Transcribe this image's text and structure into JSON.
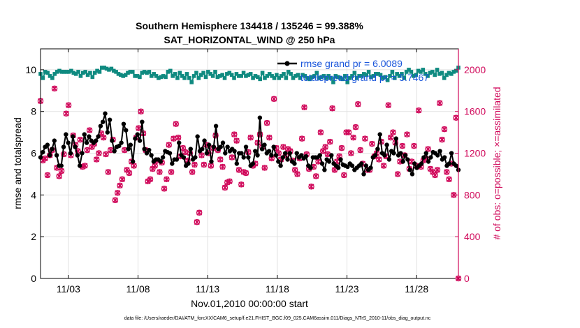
{
  "chart_data": {
    "type": "line",
    "title": "Southern Hemisphere 134418 / 135246 = 99.388%",
    "subtitle": "SAT_HORIZONTAL_WIND @ 250 hPa",
    "xlabel": "Nov.01,2010 00:00:00 start",
    "ylabel_left": "rmse and totalspread",
    "ylabel_right": "# of obs: o=possible; ×=assimilated",
    "footer": "data file: /Users/raeder/DAI/ATM_forcXX/CAM6_setup/f.e21.FHIST_BGC.f09_025.CAM6assim.011/Diags_NTrS_2010-11/obs_diag_output.nc",
    "x_tick_labels": [
      "11/03",
      "11/08",
      "11/13",
      "11/18",
      "11/23",
      "11/28"
    ],
    "x_tick_days": [
      3,
      8,
      13,
      18,
      23,
      28
    ],
    "xlim": [
      1.0,
      31.0
    ],
    "ylim_left": [
      0,
      11
    ],
    "ylim_right": [
      0,
      2200
    ],
    "y_ticks_left": [
      "0",
      "2",
      "4",
      "6",
      "8",
      "10"
    ],
    "y_ticks_right": [
      "0",
      "400",
      "800",
      "1200",
      "1600",
      "2000"
    ],
    "colors": {
      "rmse": "#000000",
      "spread": "#0f8a80",
      "obs": "#d0085a",
      "legend_text": "#1a56db",
      "grid": "#e2e2e2"
    },
    "legend": [
      {
        "name": "rmse grand pr = 6.0089"
      },
      {
        "name": "totalspread grand pr = 5.7467"
      }
    ],
    "series": [
      {
        "name": "rmse",
        "axis": "left",
        "values": [
          5.8,
          6.05,
          6.3,
          6.4,
          5.9,
          6.2,
          6.6,
          5.9,
          5.4,
          5.4,
          6.3,
          6.9,
          6.5,
          6.0,
          6.8,
          6.3,
          5.9,
          5.4,
          6.0,
          6.9,
          6.5,
          6.8,
          6.6,
          6.5,
          6.6,
          6.8,
          7.3,
          7.5,
          7.9,
          7.0,
          7.6,
          6.6,
          6.1,
          6.3,
          6.35,
          6.5,
          7.4,
          7.1,
          6.2,
          6.4,
          5.6,
          6.7,
          6.9,
          6.6,
          7.5,
          6.2,
          6.0,
          6.15,
          5.9,
          5.6,
          5.7,
          5.7,
          5.6,
          5.8,
          6.1,
          6.05,
          6.0,
          5.5,
          5.7,
          5.7,
          6.5,
          5.9,
          5.8,
          5.4,
          5.5,
          6.2,
          5.7,
          5.8,
          6.8,
          6.1,
          6.2,
          6.6,
          6.0,
          6.4,
          5.6,
          6.3,
          7.3,
          6.2,
          6.3,
          6.5,
          6.0,
          6.3,
          6.1,
          6.2,
          6.1,
          5.5,
          6.0,
          6.0,
          5.8,
          6.3,
          5.8,
          5.4,
          5.5,
          6.1,
          5.9,
          7.7,
          6.2,
          6.4,
          6.0,
          6.1,
          5.9,
          6.3,
          5.9,
          5.6,
          5.4,
          5.8,
          6.0,
          5.7,
          6.0,
          5.6,
          5.5,
          6.0,
          5.8,
          5.9,
          5.75,
          5.85,
          5.4,
          5.3,
          5.8,
          5.8,
          5.8,
          5.9,
          5.5,
          5.2,
          5.7,
          5.6,
          5.9,
          5.5,
          5.4,
          5.3,
          5.7,
          5.45,
          5.4,
          5.35,
          5.5,
          5.4,
          5.2,
          5.3,
          5.4,
          5.5,
          5.0,
          5.4,
          5.2,
          5.3,
          5.8,
          5.9,
          6.2,
          6.9,
          6.0,
          5.9,
          6.4,
          5.7,
          6.1,
          6.0,
          6.7,
          5.9,
          6.0,
          5.6,
          5.9,
          5.7,
          5.2,
          5.0,
          5.5,
          5.3,
          5.4,
          5.5,
          5.8,
          6.0,
          5.6,
          5.8,
          6.05,
          6.0,
          5.9,
          6.1,
          5.7,
          5.8,
          5.4,
          5.5,
          6.0,
          5.5,
          5.4,
          5.2
        ]
      },
      {
        "name": "totalspread",
        "axis": "left",
        "values": [
          9.8,
          9.6,
          9.9,
          9.85,
          9.7,
          9.6,
          9.8,
          9.9,
          9.95,
          9.9,
          9.9,
          9.9,
          9.9,
          9.95,
          9.85,
          9.8,
          9.9,
          9.7,
          9.85,
          9.9,
          9.75,
          9.85,
          9.65,
          9.85,
          9.95,
          9.9,
          10.1,
          10.1,
          10.05,
          10.0,
          10.05,
          9.95,
          9.9,
          9.8,
          9.75,
          9.7,
          9.75,
          9.85,
          9.9,
          9.9,
          9.7,
          9.7,
          9.65,
          9.85,
          9.9,
          9.85,
          9.9,
          9.7,
          9.8,
          9.7,
          9.6,
          9.65,
          9.7,
          9.65,
          9.9,
          9.95,
          9.7,
          9.8,
          9.6,
          9.85,
          9.7,
          9.6,
          9.8,
          9.6,
          9.4,
          9.7,
          9.85,
          9.6,
          9.75,
          9.85,
          9.65,
          9.9,
          9.8,
          9.7,
          9.9,
          9.65,
          9.7,
          9.75,
          9.6,
          9.8,
          9.85,
          9.75,
          9.6,
          9.8,
          9.7,
          9.7,
          9.85,
          9.7,
          9.75,
          9.8,
          9.6,
          9.7,
          9.65,
          9.55,
          9.85,
          9.6,
          9.7,
          9.8,
          9.7,
          9.6,
          9.75,
          9.6,
          9.7,
          9.8,
          9.6,
          9.9,
          9.8,
          9.6,
          9.7,
          9.75,
          9.6,
          9.75,
          9.7,
          9.6,
          9.55,
          9.65,
          9.7,
          9.85,
          9.6,
          9.65,
          9.7,
          9.6,
          9.7,
          9.6,
          9.4,
          9.7,
          9.65,
          9.6,
          9.55,
          9.7,
          9.4,
          9.6,
          9.7,
          9.85,
          9.6,
          9.7,
          9.7,
          9.8,
          9.75,
          9.9,
          9.65,
          9.7,
          9.8,
          9.8,
          9.75,
          9.6,
          9.65,
          9.5,
          9.7,
          9.9,
          9.6,
          9.8,
          9.7,
          9.8,
          9.6,
          9.9,
          10.0,
          9.9,
          9.7,
          9.75,
          9.95,
          9.9,
          10.0,
          9.8,
          9.7,
          9.85,
          9.9,
          9.75,
          10.0,
          9.8,
          9.85,
          9.6,
          9.75,
          9.85,
          9.8,
          9.9,
          9.95,
          10.1
        ]
      },
      {
        "name": "obs_count",
        "axis": "right",
        "values": [
          1700,
          1130,
          1150,
          990,
          1180,
          1230,
          1820,
          1060,
          980,
          1030,
          1190,
          1580,
          1660,
          1180,
          1370,
          1280,
          1220,
          1330,
          1070,
          1080,
          1230,
          1420,
          1260,
          1290,
          1140,
          1200,
          1390,
          1350,
          1190,
          1020,
          1230,
          1330,
          750,
          820,
          890,
          950,
          1230,
          1040,
          1010,
          1120,
          1080,
          1350,
          1440,
          1600,
          1390,
          1230,
          930,
          950,
          1050,
          1080,
          1130,
          1020,
          1110,
          860,
          950,
          1280,
          1020,
          1340,
          1480,
          1350,
          1170,
          1250,
          1210,
          1130,
          1200,
          1020,
          1090,
          540,
          630,
          1180,
          1090,
          1280,
          1200,
          1080,
          1250,
          1370,
          1230,
          1140,
          1070,
          870,
          920,
          930,
          1160,
          1380,
          1320,
          1040,
          900,
          1020,
          1010,
          1210,
          1350,
          1080,
          1100,
          1300,
          1380,
          1260,
          1060,
          1490,
          1350,
          1150,
          1720,
          1250,
          1200,
          1140,
          1260,
          1180,
          1240,
          1220,
          1130,
          1040,
          1000,
          1150,
          1340,
          1640,
          1190,
          1050,
          880,
          1070,
          980,
          1120,
          1400,
          1220,
          1260,
          1190,
          1310,
          1630,
          1040,
          1120,
          1170,
          1250,
          990,
          1400,
          1400,
          1200,
          1350,
          1450,
          1670,
          1230,
          1100,
          1340,
          1040,
          1040,
          1290,
          1170,
          1200,
          1140,
          1310,
          1080,
          1170,
          1660,
          1350,
          1400,
          1300,
          1000,
          1120,
          1270,
          1180,
          1380,
          1050,
          1120,
          1270,
          1080,
          1610,
          1070,
          1130,
          1150,
          1240,
          1050,
          1020,
          990,
          1040,
          1680,
          1330,
          1430,
          1020,
          950,
          1100,
          800,
          1540,
          0
        ]
      }
    ]
  }
}
